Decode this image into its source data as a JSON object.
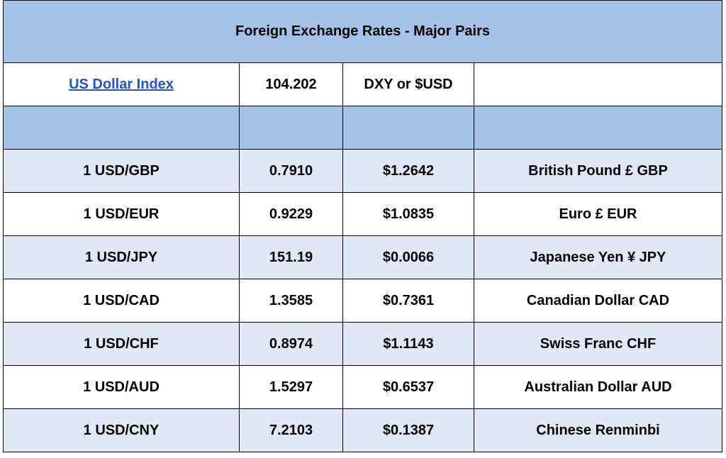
{
  "title": "Foreign Exchange Rates - Major Pairs",
  "index_row": {
    "label": "US Dollar Index",
    "value": "104.202",
    "symbol": "DXY or $USD",
    "extra": ""
  },
  "colors": {
    "header_bg": "#a4c2e6",
    "alt_row_bg": "#dfe8f3",
    "link": "#1f55c9"
  },
  "rates": [
    {
      "pair": "1 USD/GBP",
      "rate": "0.7910",
      "usd_value": "$1.2642",
      "currency": "British Pound £ GBP"
    },
    {
      "pair": "1 USD/EUR",
      "rate": "0.9229",
      "usd_value": "$1.0835",
      "currency": "Euro £ EUR"
    },
    {
      "pair": "1 USD/JPY",
      "rate": "151.19",
      "usd_value": "$0.0066",
      "currency": "Japanese Yen ¥ JPY"
    },
    {
      "pair": "1 USD/CAD",
      "rate": "1.3585",
      "usd_value": "$0.7361",
      "currency": "Canadian Dollar CAD"
    },
    {
      "pair": "1 USD/CHF",
      "rate": "0.8974",
      "usd_value": "$1.1143",
      "currency": "Swiss Franc CHF"
    },
    {
      "pair": "1 USD/AUD",
      "rate": "1.5297",
      "usd_value": "$0.6537",
      "currency": "Australian Dollar AUD"
    },
    {
      "pair": "1 USD/CNY",
      "rate": "7.2103",
      "usd_value": "$0.1387",
      "currency": "Chinese Renminbi"
    }
  ]
}
